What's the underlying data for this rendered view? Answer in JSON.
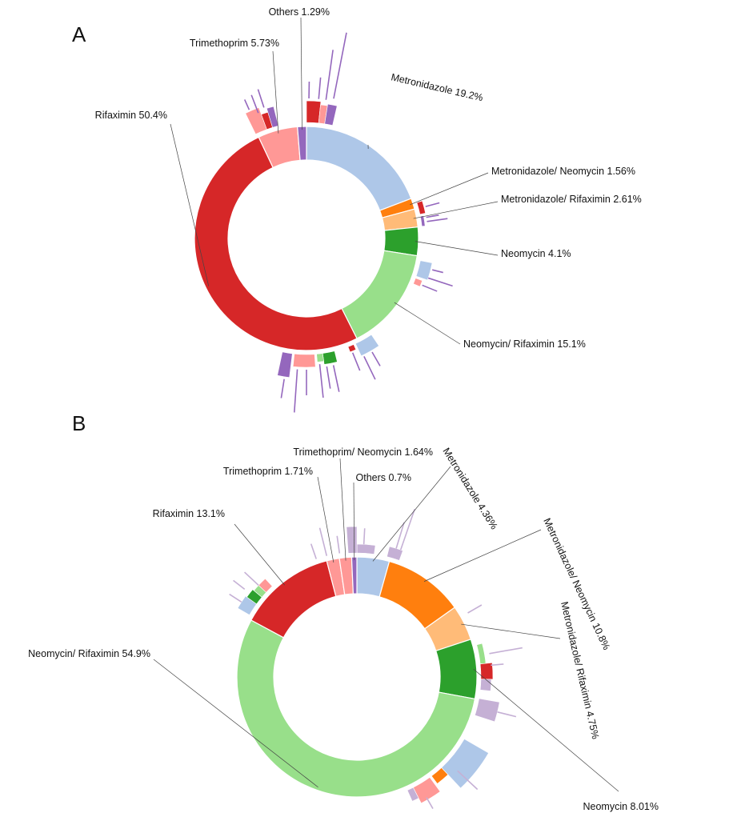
{
  "colors": {
    "Rifaximin": "#d62728",
    "Trimethoprim": "#ff9896",
    "Others": "#9467bd",
    "Metronidazole": "#aec7e8",
    "Metronidazole/ Neomycin": "#ff7f0e",
    "Metronidazole/ Rifaximin": "#ffbb78",
    "Neomycin": "#2ca02c",
    "Neomycin/ Rifaximin": "#98df8a",
    "Trimethoprim/ Neomycin": "#ff9896",
    "leader": "#444444",
    "outer_purple": "#9467bd",
    "outer_lilac": "#c5b0d5"
  },
  "chart_data": [
    {
      "panel": "A",
      "type": "sunburst",
      "slices": [
        {
          "name": "Metronidazole",
          "percent": 19.2,
          "label": "Metronidazole 19.2%"
        },
        {
          "name": "Metronidazole/ Neomycin",
          "percent": 1.56,
          "label": "Metronidazole/ Neomycin 1.56%"
        },
        {
          "name": "Metronidazole/ Rifaximin",
          "percent": 2.61,
          "label": "Metronidazole/ Rifaximin 2.61%"
        },
        {
          "name": "Neomycin",
          "percent": 4.1,
          "label": "Neomycin 4.1%"
        },
        {
          "name": "Neomycin/ Rifaximin",
          "percent": 15.1,
          "label": "Neomycin/ Rifaximin 15.1%"
        },
        {
          "name": "Rifaximin",
          "percent": 50.4,
          "label": "Rifaximin 50.4%"
        },
        {
          "name": "Trimethoprim",
          "percent": 5.73,
          "label": "Trimethoprim 5.73%"
        },
        {
          "name": "Others",
          "percent": 1.29,
          "label": "Others 1.29%"
        }
      ]
    },
    {
      "panel": "B",
      "type": "sunburst",
      "slices": [
        {
          "name": "Metronidazole",
          "percent": 4.36,
          "label": "Metronidazole 4.36%"
        },
        {
          "name": "Metronidazole/ Neomycin",
          "percent": 10.8,
          "label": "Metronidazole/ Neomycin 10.8%"
        },
        {
          "name": "Metronidazole/ Rifaximin",
          "percent": 4.75,
          "label": "Metronidazole/ Rifaximin 4.75%"
        },
        {
          "name": "Neomycin",
          "percent": 8.01,
          "label": "Neomycin 8.01%"
        },
        {
          "name": "Neomycin/ Rifaximin",
          "percent": 54.9,
          "label": "Neomycin/ Rifaximin 54.9%"
        },
        {
          "name": "Rifaximin",
          "percent": 13.1,
          "label": "Rifaximin 13.1%"
        },
        {
          "name": "Trimethoprim",
          "percent": 1.71,
          "label": "Trimethoprim 1.71%"
        },
        {
          "name": "Trimethoprim/ Neomycin",
          "percent": 1.64,
          "label": "Trimethoprim/ Neomycin 1.64%"
        },
        {
          "name": "Others",
          "percent": 0.7,
          "label": "Others 0.7%"
        }
      ]
    }
  ]
}
